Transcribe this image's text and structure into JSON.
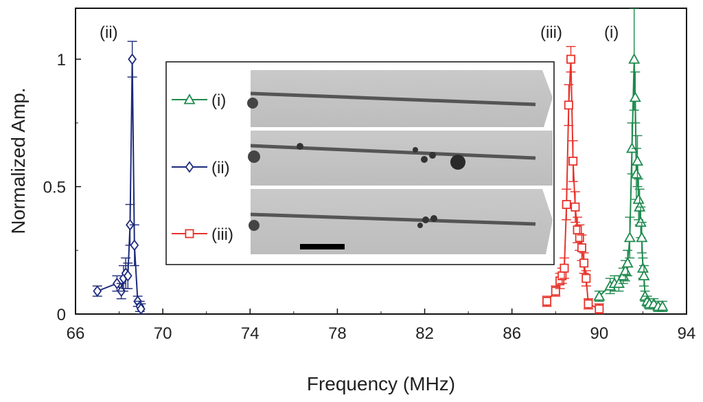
{
  "chart_data": {
    "type": "line",
    "xlabel": "Frequency (MHz)",
    "ylabel": "Normalized Amp.",
    "xlim": [
      66,
      94
    ],
    "ylim": [
      0,
      1.2
    ],
    "xticks": [
      "66",
      "70",
      "74",
      "78",
      "82",
      "86",
      "90",
      "94"
    ],
    "yticks": [
      "0",
      "0.5",
      "1"
    ],
    "peak_labels": [
      "(ii)",
      "(iii)",
      "(i)"
    ],
    "legend_position": "inset",
    "series": [
      {
        "name": "(i)",
        "color": "#1e8a4e",
        "marker": "triangle",
        "x": [
          90.0,
          90.5,
          90.7,
          90.9,
          91.1,
          91.2,
          91.3,
          91.4,
          91.5,
          91.6,
          91.65,
          91.7,
          91.75,
          91.8,
          91.85,
          91.9,
          91.95,
          92.0,
          92.05,
          92.1,
          92.2,
          92.3,
          92.5,
          92.7,
          92.9
        ],
        "y": [
          0.07,
          0.11,
          0.12,
          0.12,
          0.15,
          0.17,
          0.2,
          0.3,
          0.65,
          1.0,
          0.85,
          0.55,
          0.6,
          0.45,
          0.42,
          0.36,
          0.3,
          0.18,
          0.15,
          0.07,
          0.05,
          0.04,
          0.04,
          0.03,
          0.03
        ],
        "error": [
          0.02,
          0.03,
          0.03,
          0.03,
          0.03,
          0.04,
          0.05,
          0.08,
          0.1,
          0.2,
          0.1,
          0.1,
          0.1,
          0.08,
          0.07,
          0.06,
          0.06,
          0.04,
          0.04,
          0.02,
          0.02,
          0.02,
          0.02,
          0.02,
          0.02
        ]
      },
      {
        "name": "(ii)",
        "color": "#1d2a7a",
        "marker": "diamond",
        "x": [
          67.0,
          67.9,
          68.1,
          68.2,
          68.3,
          68.4,
          68.5,
          68.6,
          68.7,
          68.85,
          68.95,
          69.0
        ],
        "y": [
          0.09,
          0.12,
          0.09,
          0.14,
          0.16,
          0.15,
          0.35,
          1.0,
          0.27,
          0.05,
          0.03,
          0.02
        ],
        "error": [
          0.02,
          0.03,
          0.03,
          0.05,
          0.06,
          0.05,
          0.08,
          0.07,
          0.08,
          0.02,
          0.02,
          0.02
        ]
      },
      {
        "name": "(iii)",
        "color": "#e8322a",
        "marker": "square",
        "x": [
          87.6,
          88.0,
          88.2,
          88.3,
          88.4,
          88.5,
          88.6,
          88.7,
          88.8,
          88.9,
          89.0,
          89.1,
          89.2,
          89.3,
          89.4,
          89.5,
          90.0
        ],
        "y": [
          0.05,
          0.09,
          0.13,
          0.15,
          0.18,
          0.43,
          0.82,
          1.0,
          0.6,
          0.42,
          0.33,
          0.3,
          0.26,
          0.2,
          0.14,
          0.04,
          0.02
        ],
        "error": [
          0.02,
          0.02,
          0.03,
          0.03,
          0.04,
          0.06,
          0.08,
          0.05,
          0.08,
          0.06,
          0.05,
          0.05,
          0.05,
          0.04,
          0.03,
          0.02,
          0.02
        ]
      }
    ],
    "inset": {
      "legend_entries": [
        "(i)",
        "(ii)",
        "(iii)"
      ],
      "image": "three-nanowire-resonators-micrograph",
      "scale_bar": true
    }
  }
}
